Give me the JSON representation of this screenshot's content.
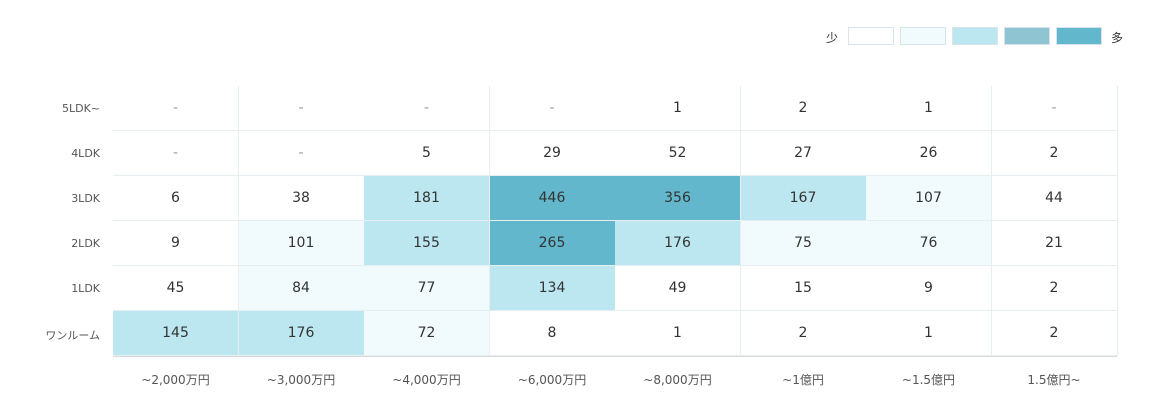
{
  "legend": {
    "low_label": "少",
    "high_label": "多",
    "swatches": [
      "#ffffff",
      "#f1fbfd",
      "#bde7f0",
      "#8fc5d3",
      "#63b7cc"
    ]
  },
  "chart_data": {
    "type": "heatmap",
    "x_categories": [
      "~2,000万円",
      "~3,000万円",
      "~4,000万円",
      "~6,000万円",
      "~8,000万円",
      "~1億円",
      "~1.5億円",
      "1.5億円~"
    ],
    "y_categories": [
      "5LDK~",
      "4LDK",
      "3LDK",
      "2LDK",
      "1LDK",
      "ワンルーム"
    ],
    "values": [
      [
        "-",
        "-",
        "-",
        "-",
        "1",
        "2",
        "1",
        "-"
      ],
      [
        "-",
        "-",
        "5",
        "29",
        "52",
        "27",
        "26",
        "2"
      ],
      [
        "6",
        "38",
        "181",
        "446",
        "356",
        "167",
        "107",
        "44"
      ],
      [
        "9",
        "101",
        "155",
        "265",
        "176",
        "75",
        "76",
        "21"
      ],
      [
        "45",
        "84",
        "77",
        "134",
        "49",
        "15",
        "9",
        "2"
      ],
      [
        "145",
        "176",
        "72",
        "8",
        "1",
        "2",
        "1",
        "2"
      ]
    ],
    "color_levels": [
      [
        0,
        0,
        0,
        0,
        0,
        0,
        0,
        0
      ],
      [
        0,
        0,
        0,
        0,
        0,
        0,
        0,
        0
      ],
      [
        0,
        0,
        2,
        4,
        4,
        2,
        1,
        0
      ],
      [
        0,
        1,
        2,
        4,
        2,
        1,
        1,
        0
      ],
      [
        0,
        1,
        1,
        2,
        0,
        0,
        0,
        0
      ],
      [
        2,
        2,
        1,
        0,
        0,
        0,
        0,
        0
      ]
    ]
  }
}
